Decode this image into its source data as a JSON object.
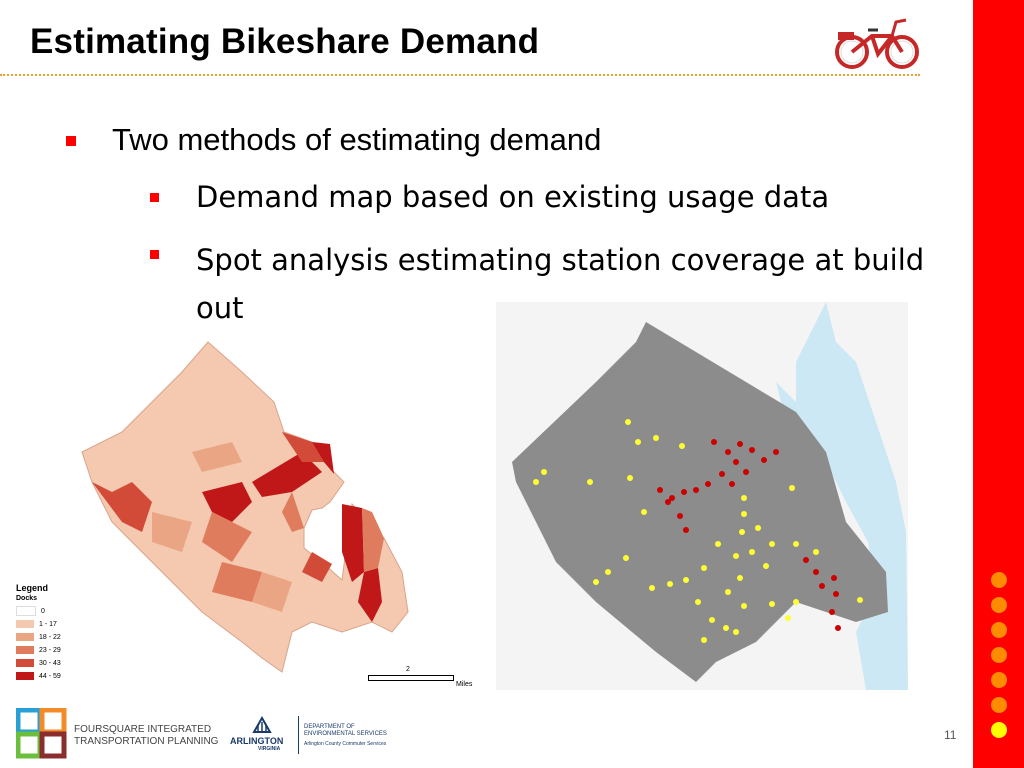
{
  "slide": {
    "title": "Estimating Bikeshare Demand",
    "bullets": [
      "Two methods of estimating demand",
      "Demand map based on existing usage data",
      "Spot analysis estimating station coverage at build out"
    ],
    "page_number": "11"
  },
  "legend": {
    "title": "Legend",
    "subtitle": "Docks",
    "items": [
      {
        "label": "0",
        "color": "#ffffff"
      },
      {
        "label": "1 - 17",
        "color": "#f4c9b0"
      },
      {
        "label": "18 - 22",
        "color": "#eaa585"
      },
      {
        "label": "23 - 29",
        "color": "#e07c5e"
      },
      {
        "label": "30 - 43",
        "color": "#d24a38"
      },
      {
        "label": "44 - 59",
        "color": "#c01818"
      }
    ]
  },
  "scale": {
    "value": "2",
    "unit": "Miles"
  },
  "footer": {
    "org1_line1": "FOURSQUARE INTEGRATED",
    "org1_line2": "TRANSPORTATION PLANNING",
    "org2": "ARLINGTON",
    "org2_sub": "VIRGINIA",
    "org3_line1": "DEPARTMENT OF",
    "org3_line2": "ENVIRONMENTAL SERVICES",
    "org3_line3": "Arlington County Commuter Services"
  },
  "colors": {
    "accent_red": "#ff0000",
    "dot_orange": "#ff8c00",
    "dot_yellow": "#ffff00",
    "title_rule": "#f0a030",
    "station_existing": "#cc0000",
    "station_proposed": "#ffff33"
  }
}
